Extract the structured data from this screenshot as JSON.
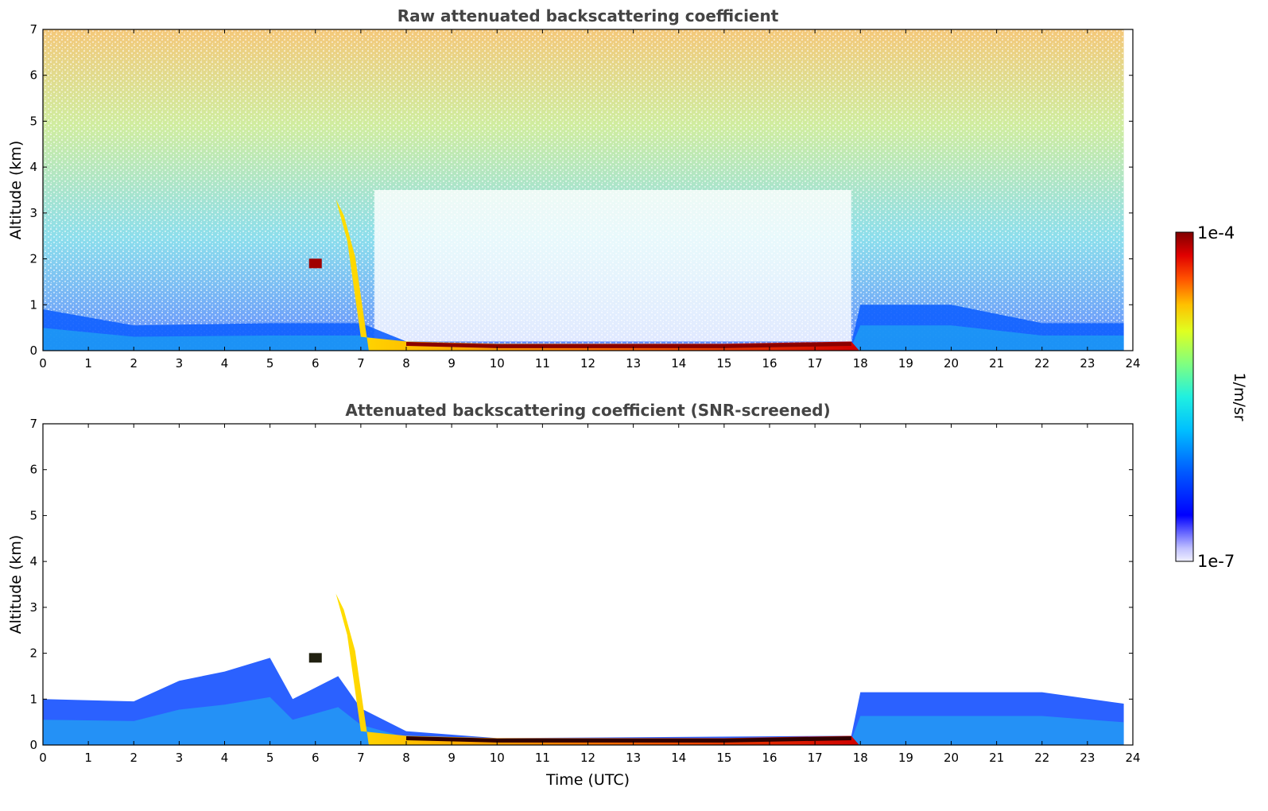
{
  "chart_data": [
    {
      "type": "heatmap",
      "title": "Raw attenuated backscattering coefficient",
      "xlabel": "",
      "ylabel": "Altitude (km)",
      "xlim": [
        0,
        24
      ],
      "ylim": [
        0,
        7
      ],
      "xticks": [
        0,
        1,
        2,
        3,
        4,
        5,
        6,
        7,
        8,
        9,
        10,
        11,
        12,
        13,
        14,
        15,
        16,
        17,
        18,
        19,
        20,
        21,
        22,
        23,
        24
      ],
      "yticks": [
        0,
        1,
        2,
        3,
        4,
        5,
        6,
        7
      ],
      "data_end_time": 23.8,
      "features": {
        "boundary_layer_top_km": [
          [
            0,
            0.9
          ],
          [
            2,
            0.55
          ],
          [
            5,
            0.6
          ],
          [
            7,
            0.6
          ],
          [
            8,
            0.2
          ],
          [
            10,
            0.15
          ],
          [
            17.8,
            0.15
          ],
          [
            18,
            1.0
          ],
          [
            20,
            1.0
          ],
          [
            22,
            0.6
          ],
          [
            23.8,
            0.6
          ]
        ],
        "high_backscatter_layer": [
          [
            6.45,
            3.3
          ],
          [
            6.7,
            2.4
          ],
          [
            7.0,
            0.3
          ],
          [
            8,
            0.2
          ],
          [
            10,
            0.15
          ],
          [
            15,
            0.15
          ],
          [
            17.8,
            0.2
          ]
        ],
        "small_cloud": {
          "time": 6.0,
          "altitude_km": 1.9
        },
        "daytime_noise_window": [
          7.3,
          17.8
        ]
      }
    },
    {
      "type": "heatmap",
      "title": "Attenuated backscattering coefficient (SNR-screened)",
      "xlabel": "Time (UTC)",
      "ylabel": "Altitude (km)",
      "xlim": [
        0,
        24
      ],
      "ylim": [
        0,
        7
      ],
      "xticks": [
        0,
        1,
        2,
        3,
        4,
        5,
        6,
        7,
        8,
        9,
        10,
        11,
        12,
        13,
        14,
        15,
        16,
        17,
        18,
        19,
        20,
        21,
        22,
        23,
        24
      ],
      "yticks": [
        0,
        1,
        2,
        3,
        4,
        5,
        6,
        7
      ],
      "data_end_time": 23.8,
      "features": {
        "boundary_layer_top_km": [
          [
            0,
            1.0
          ],
          [
            2,
            0.95
          ],
          [
            3,
            1.4
          ],
          [
            4,
            1.6
          ],
          [
            5,
            1.9
          ],
          [
            5.5,
            1.0
          ],
          [
            6.5,
            1.5
          ],
          [
            7,
            0.8
          ],
          [
            8,
            0.3
          ],
          [
            10,
            0.15
          ],
          [
            17.8,
            0.2
          ],
          [
            18,
            1.15
          ],
          [
            22,
            1.15
          ],
          [
            23.8,
            0.9
          ]
        ],
        "high_backscatter_layer": [
          [
            6.45,
            3.3
          ],
          [
            6.7,
            2.4
          ],
          [
            7.0,
            0.3
          ],
          [
            8,
            0.2
          ],
          [
            10,
            0.15
          ],
          [
            15,
            0.15
          ],
          [
            17.8,
            0.2
          ]
        ],
        "small_cloud": {
          "time": 6.0,
          "altitude_km": 1.9
        }
      }
    }
  ],
  "colorbar": {
    "min_label": "1e-7",
    "max_label": "1e-4",
    "label": "1/m/sr",
    "scale": "log",
    "colormap": "jet",
    "colors": [
      "#f0f0ff",
      "#c8c8ff",
      "#9090ff",
      "#0000ff",
      "#0050ff",
      "#00a0ff",
      "#00e0ff",
      "#40ffc0",
      "#a0ff60",
      "#ffff00",
      "#ffb000",
      "#ff4000",
      "#d00000",
      "#800000"
    ]
  }
}
